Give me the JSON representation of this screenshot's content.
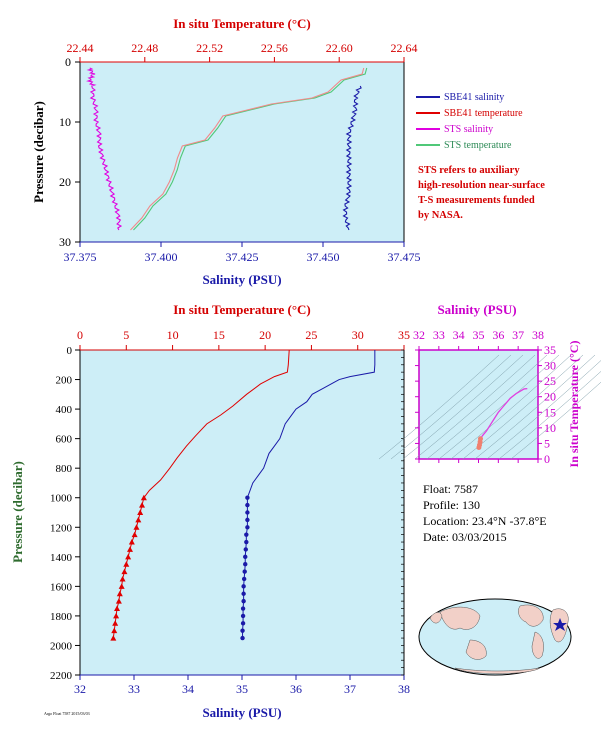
{
  "chart_data": [
    {
      "type": "line",
      "title": "",
      "top_axis_label": "In situ Temperature (°C)",
      "xlabel": "Salinity (PSU)",
      "ylabel": "Pressure (decibar)",
      "temperature_ticks": [
        "22.44",
        "22.48",
        "22.52",
        "22.56",
        "22.60",
        "22.64"
      ],
      "temperature_range": [
        22.44,
        22.64
      ],
      "salinity_ticks": [
        "37.375",
        "37.400",
        "37.425",
        "37.450",
        "37.475"
      ],
      "salinity_range": [
        37.375,
        37.475
      ],
      "pressure_ticks": [
        "0",
        "10",
        "20",
        "30"
      ],
      "pressure_range": [
        0,
        30
      ],
      "grid": false,
      "series": [
        {
          "name": "SBE41 salinity",
          "color": "#1a1aa8",
          "axis": "salinity",
          "points": [
            [
              37.4615,
              4
            ],
            [
              37.46,
              6
            ],
            [
              37.46,
              8
            ],
            [
              37.459,
              10
            ],
            [
              37.458,
              12
            ],
            [
              37.458,
              14
            ],
            [
              37.458,
              16
            ],
            [
              37.458,
              18
            ],
            [
              37.458,
              20
            ],
            [
              37.458,
              22
            ],
            [
              37.457,
              24
            ],
            [
              37.457,
              26
            ],
            [
              37.458,
              28
            ]
          ]
        },
        {
          "name": "SBE41 temperature",
          "color": "#e00000",
          "axis": "temperature",
          "points": [
            [
              22.44,
              0
            ],
            [
              22.64,
              0
            ]
          ]
        },
        {
          "name": "STS salinity",
          "color": "#e000e0",
          "axis": "salinity",
          "points": [
            [
              37.378,
              1
            ],
            [
              37.379,
              2
            ],
            [
              37.378,
              3
            ],
            [
              37.379,
              4
            ],
            [
              37.379,
              6
            ],
            [
              37.38,
              8
            ],
            [
              37.38,
              10
            ],
            [
              37.381,
              12
            ],
            [
              37.381,
              14
            ],
            [
              37.382,
              16
            ],
            [
              37.383,
              18
            ],
            [
              37.384,
              20
            ],
            [
              37.385,
              22
            ],
            [
              37.386,
              24
            ],
            [
              37.387,
              26
            ],
            [
              37.387,
              28
            ]
          ]
        },
        {
          "name": "STS temperature",
          "color": "#50c878",
          "axis": "temperature",
          "points": [
            [
              22.617,
              1
            ],
            [
              22.616,
              2
            ],
            [
              22.603,
              3
            ],
            [
              22.595,
              5
            ],
            [
              22.585,
              6
            ],
            [
              22.56,
              7
            ],
            [
              22.545,
              8
            ],
            [
              22.53,
              9
            ],
            [
              22.525,
              11
            ],
            [
              22.522,
              12
            ],
            [
              22.519,
              13
            ],
            [
              22.505,
              14
            ],
            [
              22.502,
              16
            ],
            [
              22.5,
              18
            ],
            [
              22.497,
              20
            ],
            [
              22.493,
              22
            ],
            [
              22.485,
              24
            ],
            [
              22.48,
              26
            ],
            [
              22.473,
              28
            ]
          ]
        }
      ],
      "legend_position": "right"
    },
    {
      "type": "line",
      "title": "",
      "top_axis_label": "In situ Temperature (°C)",
      "xlabel": "Salinity (PSU)",
      "ylabel": "Pressure (decibar)",
      "temperature_ticks": [
        "0",
        "5",
        "10",
        "15",
        "20",
        "25",
        "30",
        "35"
      ],
      "temperature_range": [
        0,
        35
      ],
      "salinity_ticks": [
        "32",
        "33",
        "34",
        "35",
        "36",
        "37",
        "38"
      ],
      "salinity_range": [
        32,
        38
      ],
      "pressure_ticks": [
        "0",
        "200",
        "400",
        "600",
        "800",
        "1000",
        "1200",
        "1400",
        "1600",
        "1800",
        "2000",
        "2200"
      ],
      "pressure_range": [
        0,
        2200
      ],
      "grid": false,
      "series": [
        {
          "name": "temperature",
          "color": "#e00000",
          "axis": "temperature",
          "points": [
            [
              22.6,
              0
            ],
            [
              22.5,
              100
            ],
            [
              22.4,
              150
            ],
            [
              21.0,
              180
            ],
            [
              19.5,
              230
            ],
            [
              18.0,
              300
            ],
            [
              16.5,
              380
            ],
            [
              15.2,
              440
            ],
            [
              13.7,
              500
            ],
            [
              12.5,
              580
            ],
            [
              11.5,
              650
            ],
            [
              10.5,
              730
            ],
            [
              9.7,
              800
            ],
            [
              8.7,
              880
            ],
            [
              7.5,
              950
            ],
            [
              6.9,
              1000
            ],
            [
              6.7,
              1050
            ],
            [
              6.5,
              1100
            ],
            [
              6.3,
              1150
            ],
            [
              6.1,
              1200
            ],
            [
              5.9,
              1250
            ],
            [
              5.6,
              1300
            ],
            [
              5.4,
              1350
            ],
            [
              5.2,
              1400
            ],
            [
              5.0,
              1450
            ],
            [
              4.8,
              1500
            ],
            [
              4.6,
              1550
            ],
            [
              4.5,
              1600
            ],
            [
              4.3,
              1650
            ],
            [
              4.2,
              1700
            ],
            [
              4.0,
              1750
            ],
            [
              3.9,
              1800
            ],
            [
              3.8,
              1850
            ],
            [
              3.7,
              1900
            ],
            [
              3.6,
              1950
            ]
          ]
        },
        {
          "name": "salinity",
          "color": "#1a1aa8",
          "axis": "salinity",
          "points": [
            [
              37.46,
              0
            ],
            [
              37.46,
              100
            ],
            [
              37.45,
              150
            ],
            [
              37.0,
              180
            ],
            [
              36.8,
              200
            ],
            [
              36.5,
              260
            ],
            [
              36.3,
              300
            ],
            [
              36.2,
              350
            ],
            [
              36.0,
              400
            ],
            [
              35.9,
              450
            ],
            [
              35.8,
              500
            ],
            [
              35.7,
              600
            ],
            [
              35.6,
              650
            ],
            [
              35.5,
              700
            ],
            [
              35.45,
              750
            ],
            [
              35.4,
              800
            ],
            [
              35.3,
              850
            ],
            [
              35.2,
              900
            ],
            [
              35.1,
              1000
            ],
            [
              35.1,
              1050
            ],
            [
              35.1,
              1100
            ],
            [
              35.1,
              1150
            ],
            [
              35.1,
              1200
            ],
            [
              35.08,
              1250
            ],
            [
              35.08,
              1300
            ],
            [
              35.07,
              1350
            ],
            [
              35.06,
              1400
            ],
            [
              35.06,
              1450
            ],
            [
              35.05,
              1500
            ],
            [
              35.04,
              1550
            ],
            [
              35.03,
              1600
            ],
            [
              35.03,
              1650
            ],
            [
              35.03,
              1700
            ],
            [
              35.02,
              1750
            ],
            [
              35.02,
              1800
            ],
            [
              35.02,
              1850
            ],
            [
              35.01,
              1900
            ],
            [
              35.01,
              1950
            ]
          ]
        }
      ],
      "legend_position": "none"
    },
    {
      "type": "scatter",
      "title": "",
      "xlabel": "Salinity (PSU)",
      "ylabel": "In situ Temperature (°C)",
      "salinity_ticks": [
        "32",
        "33",
        "34",
        "35",
        "36",
        "37",
        "38"
      ],
      "salinity_range": [
        32,
        38
      ],
      "temperature_ticks": [
        "0",
        "5",
        "10",
        "15",
        "20",
        "25",
        "30",
        "35"
      ],
      "temperature_range": [
        0,
        35
      ],
      "grid": false,
      "points": [
        [
          35.02,
          3.7
        ],
        [
          35.05,
          4.5
        ],
        [
          35.08,
          5.5
        ],
        [
          35.1,
          6.5
        ],
        [
          35.2,
          7.5
        ],
        [
          35.4,
          9.0
        ],
        [
          35.6,
          11.0
        ],
        [
          35.8,
          13.0
        ],
        [
          36.0,
          15.0
        ],
        [
          36.2,
          16.5
        ],
        [
          36.4,
          18.0
        ],
        [
          36.6,
          19.5
        ],
        [
          36.9,
          21.0
        ],
        [
          37.3,
          22.5
        ],
        [
          37.46,
          22.6
        ]
      ],
      "color": "#e040e0"
    }
  ],
  "legend": [
    {
      "label": "SBE41 salinity",
      "color": "#1a1aa8"
    },
    {
      "label": "SBE41 temperature",
      "color": "#e00000"
    },
    {
      "label": "STS salinity",
      "color": "#e000e0"
    },
    {
      "label": "STS temperature",
      "color": "#50c878"
    }
  ],
  "note_lines": [
    "STS refers to auxiliary",
    "high-resolution near-surface",
    "T-S measurements funded",
    "by NASA."
  ],
  "float_info": {
    "float": "Float:  7587",
    "profile": "Profile:  130",
    "location": "Location:  23.4°N  -37.8°E",
    "date": "Date:  03/03/2015"
  },
  "credit": "Argo Float 7587 2015/03/03",
  "colors": {
    "plot_bg": "#cdeef7",
    "red_axis": "#d40000",
    "blue_axis": "#1a1aa8",
    "green_label": "#2e6b2e",
    "magenta_axis": "#cc00cc",
    "land": "#f2d0c8",
    "ocean": "#cdeef7",
    "star": "#1a1aa8"
  }
}
